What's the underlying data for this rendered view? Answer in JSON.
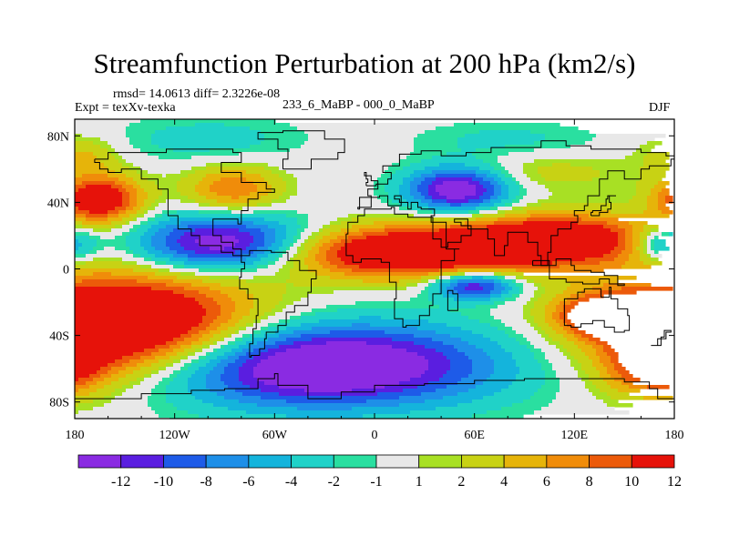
{
  "title": "Streamfunction Perturbation at 200 hPa (km2/s)",
  "stats": "rmsd= 14.0613 diff= 2.3226e-08",
  "experiment": "Expt = texXv-texka",
  "comparison": "233_6_MaBP - 000_0_MaBP",
  "season": "DJF",
  "x_ticks": [
    "180",
    "120W",
    "60W",
    "0",
    "60E",
    "120E",
    "180"
  ],
  "y_ticks": [
    "80N",
    "40N",
    "0",
    "40S",
    "80S"
  ],
  "colorbar": {
    "labels": [
      "-12",
      "-10",
      "-8",
      "-6",
      "-4",
      "-2",
      "-1",
      "1",
      "2",
      "4",
      "6",
      "8",
      "10",
      "12"
    ],
    "colors": [
      "#8a2be2",
      "#5a1ee0",
      "#1e5be8",
      "#1e8fe8",
      "#14b4dc",
      "#20d2c8",
      "#2adfa0",
      "#e8e8e8",
      "#a8e024",
      "#c8d214",
      "#e6b40a",
      "#f08c0a",
      "#ec5a0a",
      "#e6120a"
    ]
  },
  "chart_data": {
    "type": "heatmap",
    "title": "Streamfunction Perturbation at 200 hPa (km2/s)",
    "units": "km2/s",
    "level_hPa": 200,
    "season": "DJF",
    "x_range_deg": [
      -180,
      180
    ],
    "y_range_deg": [
      -90,
      90
    ],
    "contour_levels": [
      -12,
      -10,
      -8,
      -6,
      -4,
      -2,
      -1,
      1,
      2,
      4,
      6,
      8,
      10,
      12
    ],
    "field_centers": [
      {
        "lon": -150,
        "lat": -35,
        "value": 20,
        "sx": 55,
        "sy": 22
      },
      {
        "lon": -165,
        "lat": 42,
        "value": 14,
        "sx": 18,
        "sy": 10
      },
      {
        "lon": -85,
        "lat": 48,
        "value": 8,
        "sx": 20,
        "sy": 10
      },
      {
        "lon": -90,
        "lat": 15,
        "value": -16,
        "sx": 38,
        "sy": 12
      },
      {
        "lon": -35,
        "lat": -58,
        "value": -18,
        "sx": 75,
        "sy": 18
      },
      {
        "lon": 50,
        "lat": 48,
        "value": -15,
        "sx": 22,
        "sy": 10
      },
      {
        "lon": 15,
        "lat": 10,
        "value": 16,
        "sx": 55,
        "sy": 11
      },
      {
        "lon": 110,
        "lat": 18,
        "value": 14,
        "sx": 45,
        "sy": 11
      },
      {
        "lon": 60,
        "lat": -10,
        "value": -13,
        "sx": 18,
        "sy": 6
      },
      {
        "lon": 175,
        "lat": 15,
        "value": -10,
        "sx": 14,
        "sy": 8
      },
      {
        "lon": 140,
        "lat": -28,
        "value": 13,
        "sx": 20,
        "sy": 8
      },
      {
        "lon": 170,
        "lat": -60,
        "value": 9,
        "sx": 20,
        "sy": 12
      },
      {
        "lon": -100,
        "lat": 78,
        "value": -3,
        "sx": 40,
        "sy": 10
      },
      {
        "lon": 80,
        "lat": 78,
        "value": -2.5,
        "sx": 40,
        "sy": 8
      },
      {
        "lon": 175,
        "lat": 70,
        "value": 2,
        "sx": 14,
        "sy": 8
      },
      {
        "lon": -170,
        "lat": 68,
        "value": 3,
        "sx": 14,
        "sy": 8
      },
      {
        "lon": 100,
        "lat": 58,
        "value": 3,
        "sx": 40,
        "sy": 8
      }
    ]
  }
}
